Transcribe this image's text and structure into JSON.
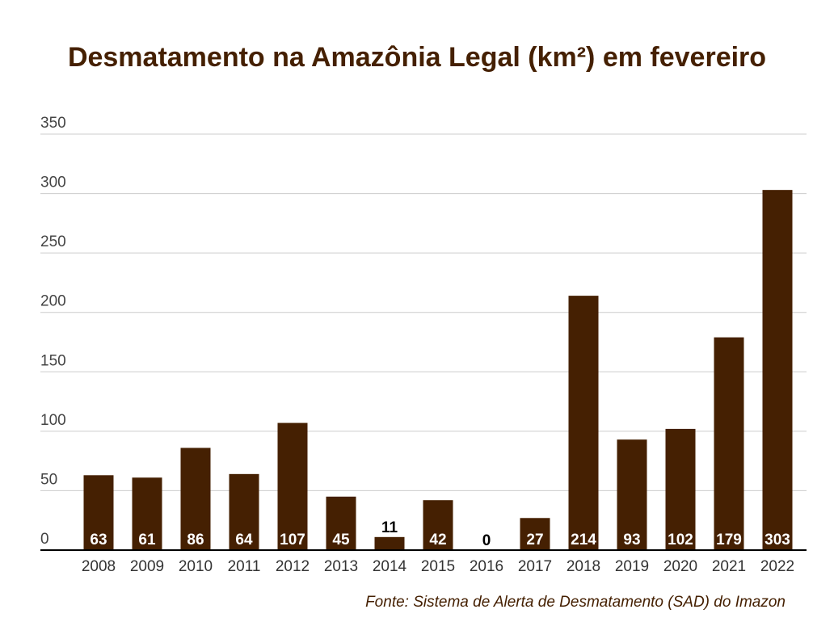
{
  "colors": {
    "bar": "#452002",
    "title": "#452002",
    "source": "#452002",
    "grid": "#cccccc",
    "axis": "#000000",
    "label_inside": "#ffffff",
    "label_outside": "#000000"
  },
  "chart_data": {
    "type": "bar",
    "title": "Desmatamento na Amazônia Legal (km²) em fevereiro",
    "source": "Fonte: Sistema de Alerta de Desmatamento (SAD) do Imazon",
    "xlabel": "",
    "ylabel": "",
    "categories": [
      "2008",
      "2009",
      "2010",
      "2011",
      "2012",
      "2013",
      "2014",
      "2015",
      "2016",
      "2017",
      "2018",
      "2019",
      "2020",
      "2021",
      "2022"
    ],
    "values": [
      63,
      61,
      86,
      64,
      107,
      45,
      11,
      42,
      0,
      27,
      214,
      93,
      102,
      179,
      303
    ],
    "ylim": [
      0,
      350
    ],
    "yticks": [
      0,
      50,
      100,
      150,
      200,
      250,
      300,
      350
    ],
    "grid": true,
    "legend": "none"
  }
}
